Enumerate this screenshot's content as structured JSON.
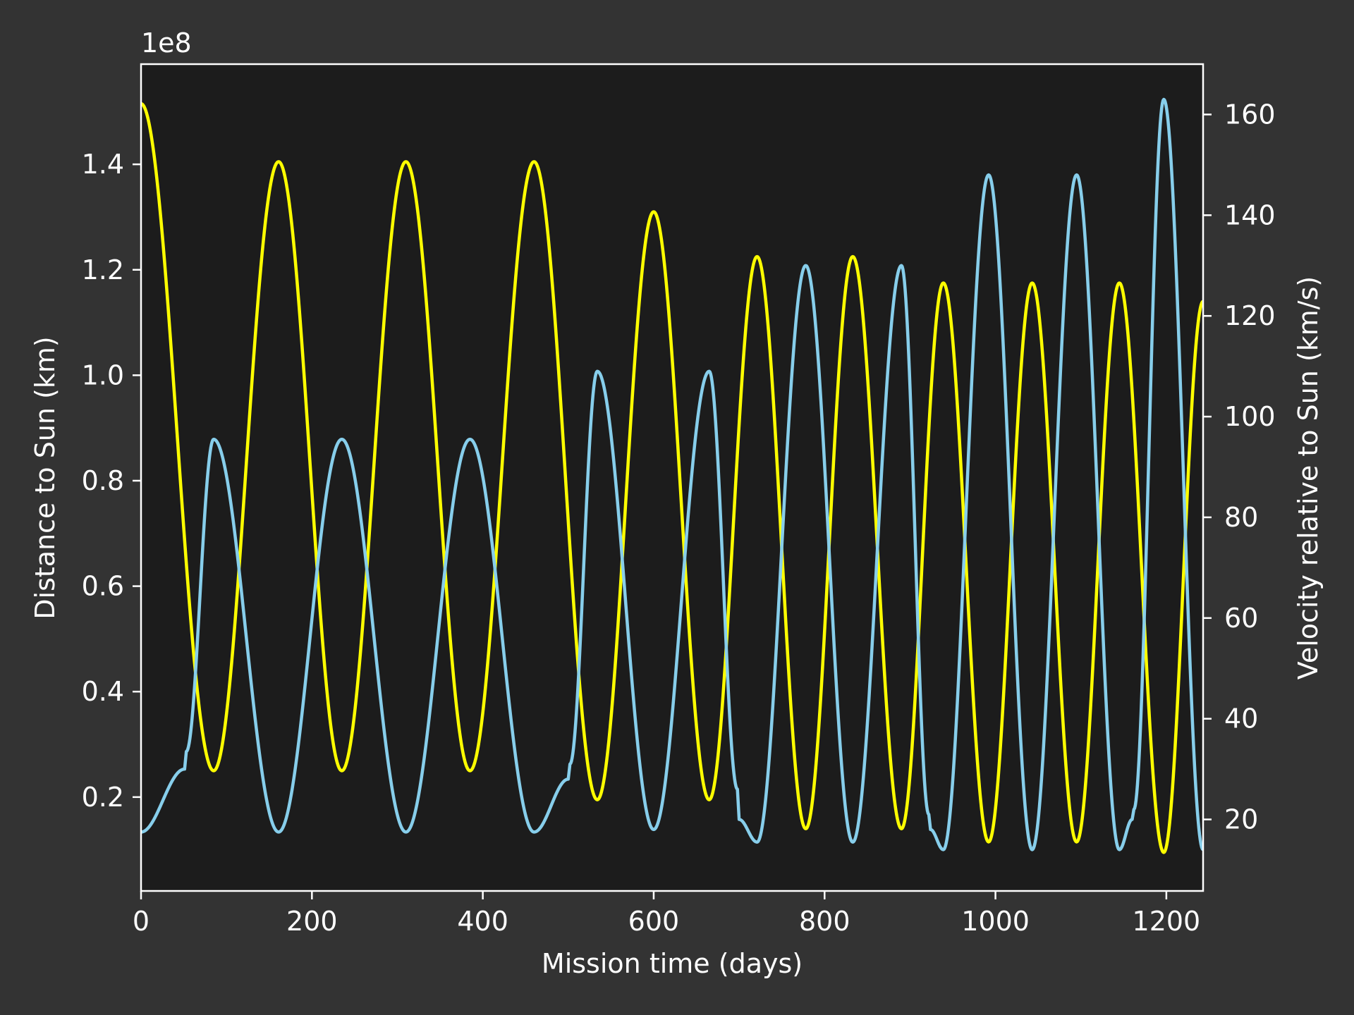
{
  "colors": {
    "figure_background": "#333333",
    "plot_background": "#1c1c1c",
    "axes": "#ffffff",
    "distance_series": "#ffff00",
    "velocity_series": "#87ceeb"
  },
  "chart_data": {
    "type": "line",
    "xlabel": "Mission time (days)",
    "ylabel_left": "Distance to Sun (km)",
    "ylabel_right": "Velocity relative to Sun (km/s)",
    "left_axis_multiplier": "1e8",
    "xlim": [
      0,
      1243
    ],
    "ylim_left": [
      2200000.0,
      159000000.0
    ],
    "ylim_right": [
      5.8,
      170
    ],
    "xticks": [
      0,
      200,
      400,
      600,
      800,
      1000,
      1200
    ],
    "xtick_labels": [
      "0",
      "200",
      "400",
      "600",
      "800",
      "1000",
      "1200"
    ],
    "yticks_left": [
      0.2,
      0.4,
      0.6,
      0.8,
      1.0,
      1.2,
      1.4
    ],
    "ytick_labels_left": [
      "0.2",
      "0.4",
      "0.6",
      "0.8",
      "1.0",
      "1.2",
      "1.4"
    ],
    "yticks_right": [
      20,
      40,
      60,
      80,
      100,
      120,
      140,
      160
    ],
    "ytick_labels_right": [
      "20",
      "40",
      "60",
      "80",
      "100",
      "120",
      "140",
      "160"
    ],
    "grid": false,
    "legend": "none",
    "series": [
      {
        "axis": "left",
        "color": "#ffff00",
        "x": [
          0,
          85,
          161,
          235,
          310,
          385,
          460,
          534,
          600,
          665,
          721,
          778,
          833,
          890,
          939,
          992,
          1043,
          1095,
          1145,
          1197,
          1243
        ],
        "values": [
          151500000,
          25000000,
          140500000,
          25000000,
          140500000,
          25000000,
          140500000,
          19500000,
          131000000,
          19500000,
          122500000,
          14000000,
          122500000,
          14000000,
          117500000,
          11500000,
          117500000,
          11500000,
          117500000,
          9500000,
          114000000
        ]
      },
      {
        "axis": "right",
        "color": "#87ceeb",
        "x": [
          0,
          51,
          53,
          85,
          161,
          235,
          310,
          385,
          460,
          500,
          502,
          534,
          600,
          665,
          698,
          700,
          721,
          778,
          833,
          890,
          922,
          924,
          939,
          992,
          1043,
          1095,
          1145,
          1160,
          1162,
          1197,
          1243
        ],
        "values": [
          17.5,
          30,
          33.5,
          95.5,
          17.5,
          95.5,
          17.5,
          95.5,
          17.5,
          28,
          31,
          109,
          18,
          109,
          26,
          20,
          15.5,
          130,
          15.5,
          130,
          21,
          18,
          14,
          148,
          14,
          148,
          14,
          20,
          22,
          163,
          14
        ]
      }
    ]
  }
}
